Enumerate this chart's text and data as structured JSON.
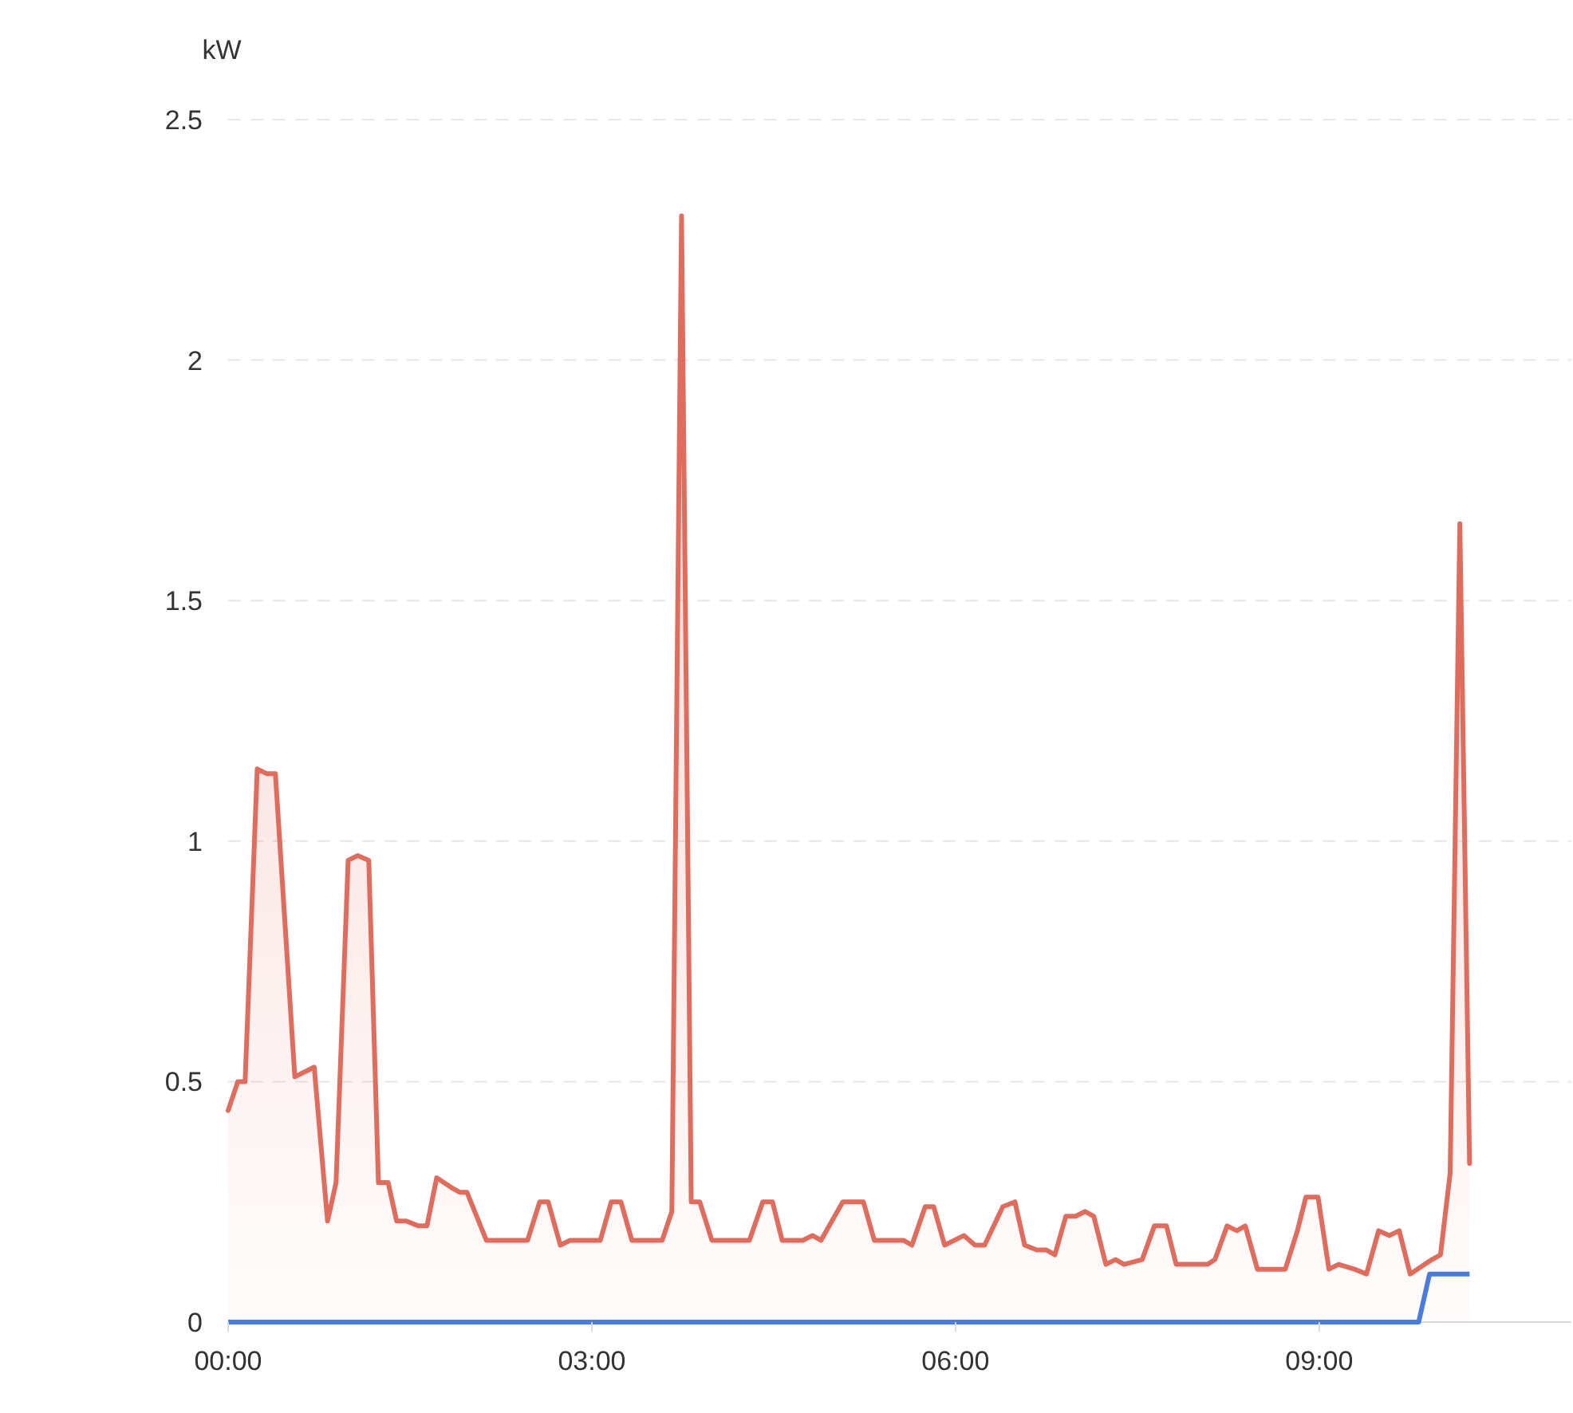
{
  "chart_data": {
    "type": "area",
    "ylabel": "kW",
    "grid": "y",
    "xlim": [
      0,
      11.08
    ],
    "ylim": [
      0,
      2.5
    ],
    "xticks": [
      {
        "value": 0,
        "label": "00:00"
      },
      {
        "value": 3,
        "label": "03:00"
      },
      {
        "value": 6,
        "label": "06:00"
      },
      {
        "value": 9,
        "label": "09:00"
      }
    ],
    "yticks": [
      0,
      0.5,
      1,
      1.5,
      2,
      2.5
    ],
    "series": [
      {
        "color": "#e06c5d",
        "x": [
          0,
          0.08,
          0.14,
          0.24,
          0.32,
          0.39,
          0.55,
          0.71,
          0.82,
          0.89,
          0.99,
          1.07,
          1.16,
          1.24,
          1.32,
          1.39,
          1.47,
          1.57,
          1.64,
          1.72,
          1.84,
          1.91,
          1.97,
          2.13,
          2.47,
          2.57,
          2.64,
          2.74,
          2.82,
          3.07,
          3.16,
          3.24,
          3.33,
          3.58,
          3.66,
          3.74,
          3.82,
          3.89,
          3.99,
          4.3,
          4.41,
          4.49,
          4.57,
          4.74,
          4.82,
          4.89,
          5.07,
          5.24,
          5.33,
          5.57,
          5.64,
          5.75,
          5.82,
          5.91,
          6.07,
          6.16,
          6.24,
          6.39,
          6.49,
          6.57,
          6.67,
          6.75,
          6.82,
          6.91,
          6.99,
          7.07,
          7.14,
          7.24,
          7.32,
          7.39,
          7.54,
          7.64,
          7.74,
          7.82,
          8.08,
          8.14,
          8.24,
          8.32,
          8.39,
          8.49,
          8.72,
          8.82,
          8.89,
          8.99,
          9.08,
          9.16,
          9.29,
          9.39,
          9.49,
          9.58,
          9.66,
          9.75,
          9.87,
          9.93,
          10.0,
          10.08,
          10.16,
          10.24
        ],
        "values": [
          0.44,
          0.5,
          0.5,
          1.15,
          1.14,
          1.14,
          0.51,
          0.53,
          0.21,
          0.29,
          0.96,
          0.97,
          0.96,
          0.29,
          0.29,
          0.21,
          0.21,
          0.2,
          0.2,
          0.3,
          0.28,
          0.27,
          0.27,
          0.17,
          0.17,
          0.25,
          0.25,
          0.16,
          0.17,
          0.17,
          0.25,
          0.25,
          0.17,
          0.17,
          0.23,
          2.3,
          0.25,
          0.25,
          0.17,
          0.17,
          0.25,
          0.25,
          0.17,
          0.17,
          0.18,
          0.17,
          0.25,
          0.25,
          0.17,
          0.17,
          0.16,
          0.24,
          0.24,
          0.16,
          0.18,
          0.16,
          0.16,
          0.24,
          0.25,
          0.16,
          0.15,
          0.15,
          0.14,
          0.22,
          0.22,
          0.23,
          0.22,
          0.12,
          0.13,
          0.12,
          0.13,
          0.2,
          0.2,
          0.12,
          0.12,
          0.13,
          0.2,
          0.19,
          0.2,
          0.11,
          0.11,
          0.19,
          0.26,
          0.26,
          0.11,
          0.12,
          0.11,
          0.1,
          0.19,
          0.18,
          0.19,
          0.1,
          0.12,
          0.13,
          0.14,
          0.31,
          1.66,
          0.33
        ]
      },
      {
        "type": "line",
        "color": "#4a7be0",
        "x": [
          0,
          9.82,
          9.91,
          10.24
        ],
        "values": [
          0,
          0,
          0.1,
          0.1
        ]
      }
    ]
  }
}
